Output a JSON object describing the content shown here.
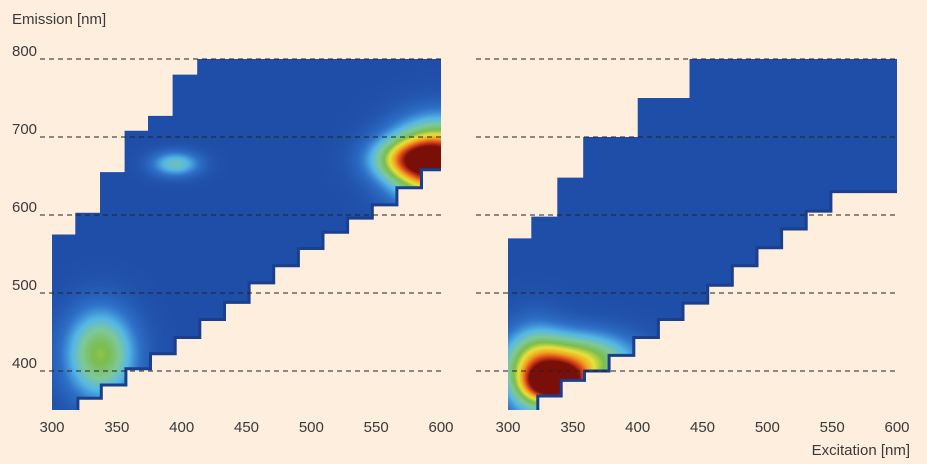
{
  "colors": {
    "background": "#fdeedd",
    "map_base": "#1f4ea8",
    "map_edge": "#1a3f8c",
    "gridline": "#222222",
    "text": "#3a3a3a",
    "colormap": [
      "#1f4ea8",
      "#2f72c9",
      "#55b7e6",
      "#7ec99a",
      "#7bbd4f",
      "#e8e23a",
      "#f2a21e",
      "#d9411a",
      "#7a0f0a"
    ]
  },
  "chart_data": [
    {
      "type": "heatmap",
      "panel": "left",
      "title": "",
      "xlabel": "",
      "ylabel": "Emission [nm]",
      "xlim": [
        300,
        600
      ],
      "ylim": [
        350,
        800
      ],
      "x_ticks": [
        "300",
        "350",
        "400",
        "450",
        "500",
        "550",
        "600"
      ],
      "y_ticks": [
        "400",
        "500",
        "600",
        "700",
        "800"
      ],
      "grid": {
        "horizontal_dashed_at": [
          400,
          500,
          600,
          700,
          800
        ]
      },
      "region_upper": [
        [
          300,
          575
        ],
        [
          318,
          575
        ],
        [
          318,
          603
        ],
        [
          337,
          603
        ],
        [
          337,
          655
        ],
        [
          356,
          655
        ],
        [
          356,
          708
        ],
        [
          374,
          708
        ],
        [
          374,
          727
        ],
        [
          393,
          727
        ],
        [
          393,
          780
        ],
        [
          412,
          780
        ],
        [
          412,
          800
        ],
        [
          600,
          800
        ]
      ],
      "region_lower": [
        [
          320,
          350
        ],
        [
          320,
          365
        ],
        [
          338,
          365
        ],
        [
          338,
          382
        ],
        [
          357,
          382
        ],
        [
          357,
          403
        ],
        [
          376,
          403
        ],
        [
          376,
          422
        ],
        [
          395,
          422
        ],
        [
          395,
          443
        ],
        [
          414,
          443
        ],
        [
          414,
          466
        ],
        [
          433,
          466
        ],
        [
          433,
          488
        ],
        [
          452,
          488
        ],
        [
          452,
          513
        ],
        [
          471,
          513
        ],
        [
          471,
          535
        ],
        [
          490,
          535
        ],
        [
          490,
          557
        ],
        [
          509,
          557
        ],
        [
          509,
          578
        ],
        [
          528,
          578
        ],
        [
          528,
          596
        ],
        [
          547,
          596
        ],
        [
          547,
          613
        ],
        [
          566,
          613
        ],
        [
          566,
          635
        ],
        [
          585,
          635
        ],
        [
          585,
          658
        ],
        [
          600,
          658
        ]
      ],
      "peaks": [
        {
          "x": 337,
          "y": 422,
          "intensity": 0.52,
          "sx": 18,
          "sy": 38
        },
        {
          "x": 395,
          "y": 666,
          "intensity": 0.32,
          "sx": 13,
          "sy": 11
        },
        {
          "x": 598,
          "y": 668,
          "intensity": 1.0,
          "sx": 24,
          "sy": 34
        },
        {
          "x": 575,
          "y": 672,
          "intensity": 0.45,
          "sx": 20,
          "sy": 18
        }
      ]
    },
    {
      "type": "heatmap",
      "panel": "right",
      "title": "",
      "xlabel": "Excitation [nm]",
      "ylabel": "",
      "xlim": [
        300,
        600
      ],
      "ylim": [
        350,
        800
      ],
      "x_ticks": [
        "300",
        "350",
        "400",
        "450",
        "500",
        "550",
        "600"
      ],
      "y_ticks": [],
      "grid": {
        "horizontal_dashed_at": [
          400,
          500,
          600,
          700,
          800
        ]
      },
      "region_upper": [
        [
          300,
          570
        ],
        [
          318,
          570
        ],
        [
          318,
          598
        ],
        [
          338,
          598
        ],
        [
          338,
          648
        ],
        [
          358,
          648
        ],
        [
          358,
          700
        ],
        [
          400,
          700
        ],
        [
          400,
          750
        ],
        [
          440,
          750
        ],
        [
          440,
          800
        ],
        [
          600,
          800
        ]
      ],
      "region_lower": [
        [
          323,
          350
        ],
        [
          323,
          368
        ],
        [
          341,
          368
        ],
        [
          341,
          388
        ],
        [
          359,
          388
        ],
        [
          359,
          400
        ],
        [
          378,
          400
        ],
        [
          378,
          420
        ],
        [
          397,
          420
        ],
        [
          397,
          443
        ],
        [
          416,
          443
        ],
        [
          416,
          466
        ],
        [
          435,
          466
        ],
        [
          435,
          487
        ],
        [
          454,
          487
        ],
        [
          454,
          510
        ],
        [
          473,
          510
        ],
        [
          473,
          535
        ],
        [
          492,
          535
        ],
        [
          492,
          558
        ],
        [
          511,
          558
        ],
        [
          511,
          582
        ],
        [
          530,
          582
        ],
        [
          530,
          605
        ],
        [
          549,
          605
        ],
        [
          549,
          630
        ],
        [
          566,
          630
        ],
        [
          566,
          630
        ],
        [
          600,
          630
        ]
      ],
      "peaks": [
        {
          "x": 338,
          "y": 385,
          "intensity": 1.0,
          "sx": 16,
          "sy": 16
        },
        {
          "x": 352,
          "y": 413,
          "intensity": 0.62,
          "sx": 30,
          "sy": 24
        },
        {
          "x": 320,
          "y": 395,
          "intensity": 0.45,
          "sx": 16,
          "sy": 40
        }
      ]
    }
  ]
}
